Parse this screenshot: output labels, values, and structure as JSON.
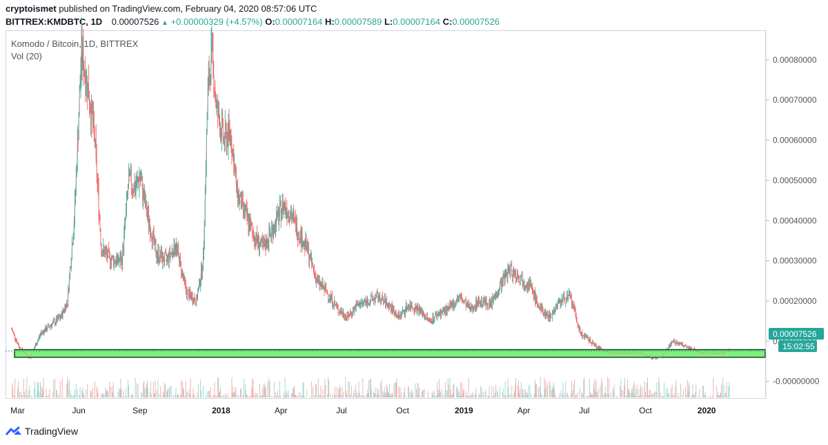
{
  "header": {
    "author": "cryptoismet",
    "published_text": "published on TradingView.com, February 04, 2020 08:57:06 UTC"
  },
  "ohlc": {
    "symbol": "BITTREX:KMDBTC, 1D",
    "last": "0.00007526",
    "change": "+0.00000329 (+4.57%)",
    "o_label": "O:",
    "o_value": "0.00007164",
    "h_label": "H:",
    "h_value": "0.00007589",
    "l_label": "L:",
    "l_value": "0.00007164",
    "c_label": "C:",
    "c_value": "0.00007526"
  },
  "legend": {
    "title": "Komodo / Bitcoin, 1D, BITTREX",
    "volume": "Vol (20)"
  },
  "price_badge": "0.00007526",
  "countdown": "15:02:55",
  "footer": {
    "brand": "TradingView"
  },
  "colors": {
    "up": "#26a69a",
    "down": "#ef5350",
    "up_vol": "#9ad6cf",
    "down_vol": "#f3a8a6",
    "support_zone": "#7ef07e",
    "badge": "#26a69a"
  },
  "chart_data": {
    "type": "line",
    "title": "Komodo / Bitcoin, 1D, BITTREX",
    "x_ticks": [
      "Mar",
      "Jun",
      "Sep",
      "2018",
      "Apr",
      "Jul",
      "Oct",
      "2019",
      "Apr",
      "Jul",
      "Oct",
      "2020"
    ],
    "y_ticks": [
      "0.00080000",
      "0.00070000",
      "0.00060000",
      "0.00050000",
      "0.00040000",
      "0.00030000",
      "0.00020000",
      "0.00010000",
      "-0.00000000"
    ],
    "ylim": [
      -4e-05,
      0.00087
    ],
    "series": [
      {
        "name": "KMDBTC",
        "x": [
          "2017-02-20",
          "2017-03-05",
          "2017-03-20",
          "2017-04-05",
          "2017-04-20",
          "2017-05-05",
          "2017-05-15",
          "2017-05-25",
          "2017-06-05",
          "2017-06-15",
          "2017-06-25",
          "2017-07-05",
          "2017-07-15",
          "2017-07-25",
          "2017-08-05",
          "2017-08-15",
          "2017-08-25",
          "2017-09-01",
          "2017-09-10",
          "2017-09-25",
          "2017-10-10",
          "2017-10-25",
          "2017-11-10",
          "2017-11-25",
          "2017-12-05",
          "2017-12-12",
          "2017-12-18",
          "2017-12-25",
          "2018-01-05",
          "2018-01-15",
          "2018-01-25",
          "2018-02-05",
          "2018-02-20",
          "2018-03-05",
          "2018-03-20",
          "2018-04-05",
          "2018-04-15",
          "2018-04-25",
          "2018-05-10",
          "2018-05-25",
          "2018-06-10",
          "2018-06-25",
          "2018-07-10",
          "2018-07-25",
          "2018-08-10",
          "2018-08-25",
          "2018-09-10",
          "2018-09-25",
          "2018-10-10",
          "2018-10-25",
          "2018-11-10",
          "2018-11-25",
          "2018-12-10",
          "2018-12-25",
          "2019-01-10",
          "2019-01-25",
          "2019-02-10",
          "2019-02-25",
          "2019-03-10",
          "2019-03-25",
          "2019-04-10",
          "2019-04-25",
          "2019-05-10",
          "2019-05-25",
          "2019-06-10",
          "2019-06-25",
          "2019-07-10",
          "2019-07-25",
          "2019-08-10",
          "2019-08-25",
          "2019-09-10",
          "2019-09-25",
          "2019-10-10",
          "2019-10-25",
          "2019-11-10",
          "2019-11-25",
          "2019-12-10",
          "2019-12-25",
          "2020-01-10",
          "2020-01-25",
          "2020-02-04"
        ],
        "values": [
          0.00013,
          8e-05,
          6e-05,
          0.00012,
          0.00014,
          0.00016,
          0.0002,
          0.0004,
          0.00082,
          0.00073,
          0.0006,
          0.00033,
          0.00031,
          0.0003,
          0.0003,
          0.0005,
          0.00048,
          0.00051,
          0.00043,
          0.00032,
          0.0003,
          0.00034,
          0.00022,
          0.0002,
          0.0003,
          0.00072,
          0.00082,
          0.00068,
          0.0006,
          0.00062,
          0.00047,
          0.00042,
          0.00036,
          0.00033,
          0.00038,
          0.00044,
          0.00042,
          0.00038,
          0.00033,
          0.00025,
          0.00022,
          0.00018,
          0.00016,
          0.00019,
          0.0002,
          0.00021,
          0.00019,
          0.00016,
          0.00019,
          0.00018,
          0.00015,
          0.00017,
          0.00018,
          0.00021,
          0.00018,
          0.0002,
          0.00019,
          0.00024,
          0.00028,
          0.00026,
          0.00024,
          0.00018,
          0.00016,
          0.0002,
          0.00021,
          0.00012,
          0.0001,
          8e-05,
          7e-05,
          7e-05,
          7e-05,
          7e-05,
          6e-05,
          6e-05,
          0.0001,
          9e-05,
          8e-05,
          7e-05,
          7e-05,
          7e-05,
          7.53e-05
        ]
      }
    ],
    "support_zone": [
      6e-05,
      7.9e-05
    ],
    "grid": false,
    "legend_position": "top-left"
  }
}
